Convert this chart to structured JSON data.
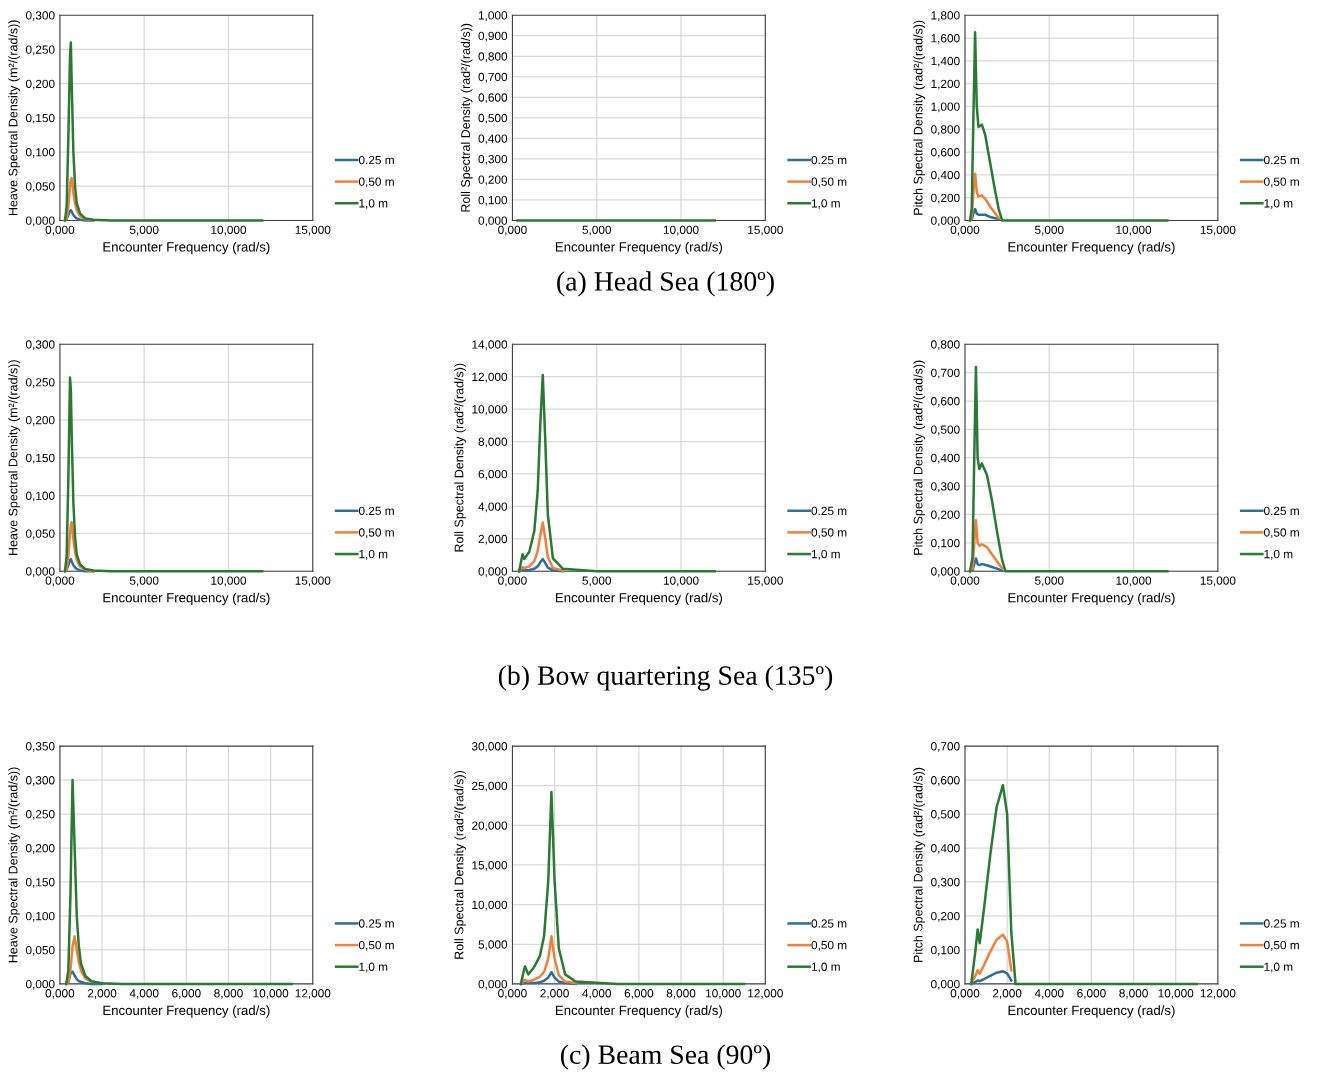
{
  "chart_data": [
    {
      "type": "line",
      "xlabel": "Encounter Frequency (rad/s)",
      "ylabel": "Heave Spectral Density (m²/(rad/s))",
      "xlim": [
        0,
        15
      ],
      "xticks": [
        {
          "value": 0,
          "label": "0,000"
        },
        {
          "value": 5,
          "label": "5,000"
        },
        {
          "value": 10,
          "label": "10,000"
        },
        {
          "value": 15,
          "label": "15,000"
        }
      ],
      "ylim": [
        0,
        0.3
      ],
      "yticks": [
        {
          "value": 0,
          "label": "0,000"
        },
        {
          "value": 0.05,
          "label": "0,050"
        },
        {
          "value": 0.1,
          "label": "0,100"
        },
        {
          "value": 0.15,
          "label": "0,150"
        },
        {
          "value": 0.2,
          "label": "0,200"
        },
        {
          "value": 0.25,
          "label": "0,250"
        },
        {
          "value": 0.3,
          "label": "0,300"
        }
      ],
      "grid": true,
      "legend": "right",
      "marker": "none",
      "line_style": "solid",
      "x": [
        0.3,
        0.4,
        0.5,
        0.6,
        0.65,
        0.7,
        0.8,
        0.9,
        1.0,
        1.2,
        1.5,
        2,
        3,
        5,
        12
      ],
      "series": [
        {
          "name": "0.25 m",
          "color": "#2e6e9e",
          "values": [
            0,
            0.002,
            0.008,
            0.014,
            0.015,
            0.013,
            0.008,
            0.005,
            0.003,
            0.001,
            0,
            0,
            null,
            null,
            null
          ]
        },
        {
          "name": "0,50 m",
          "color": "#f07f3c",
          "values": [
            0,
            0.003,
            0.02,
            0.05,
            0.06,
            0.062,
            0.04,
            0.025,
            0.015,
            0.006,
            0.002,
            0,
            null,
            null,
            null
          ]
        },
        {
          "name": "1,0 m",
          "color": "#2a7a33",
          "values": [
            0,
            0.02,
            0.12,
            0.24,
            0.26,
            0.2,
            0.1,
            0.05,
            0.025,
            0.01,
            0.003,
            0.001,
            0,
            0,
            0
          ]
        }
      ]
    },
    {
      "type": "line",
      "xlabel": "Encounter Frequency (rad/s)",
      "ylabel": "Roll Spectral Density (rad²/(rad/s))",
      "xlim": [
        0,
        15
      ],
      "xticks": [
        {
          "value": 0,
          "label": "0,000"
        },
        {
          "value": 5,
          "label": "5,000"
        },
        {
          "value": 10,
          "label": "10,000"
        },
        {
          "value": 15,
          "label": "15,000"
        }
      ],
      "ylim": [
        0,
        1
      ],
      "yticks": [
        {
          "value": 0,
          "label": "0,000"
        },
        {
          "value": 0.1,
          "label": "0,100"
        },
        {
          "value": 0.2,
          "label": "0,200"
        },
        {
          "value": 0.3,
          "label": "0,300"
        },
        {
          "value": 0.4,
          "label": "0,400"
        },
        {
          "value": 0.5,
          "label": "0,500"
        },
        {
          "value": 0.6,
          "label": "0,600"
        },
        {
          "value": 0.7,
          "label": "0,700"
        },
        {
          "value": 0.8,
          "label": "0,800"
        },
        {
          "value": 0.9,
          "label": "0,900"
        },
        {
          "value": 1,
          "label": "1,000"
        }
      ],
      "grid": true,
      "legend": "right",
      "marker": "none",
      "line_style": "solid",
      "annotations": [
        "(a) Head Sea (180º)"
      ],
      "x": [
        0.3,
        1,
        2,
        5,
        12
      ],
      "series": [
        {
          "name": "0.25 m",
          "color": "#2e6e9e",
          "values": [
            null,
            null,
            null,
            null,
            null
          ]
        },
        {
          "name": "0,50 m",
          "color": "#f07f3c",
          "values": [
            null,
            null,
            null,
            null,
            null
          ]
        },
        {
          "name": "1,0 m",
          "color": "#2a7a33",
          "values": [
            0,
            0,
            0,
            0,
            0
          ]
        }
      ]
    },
    {
      "type": "line",
      "xlabel": "Encounter Frequency (rad/s)",
      "ylabel": "Pitch Spectral Density (rad²/(rad/s))",
      "xlim": [
        0,
        15
      ],
      "xticks": [
        {
          "value": 0,
          "label": "0,000"
        },
        {
          "value": 5,
          "label": "5,000"
        },
        {
          "value": 10,
          "label": "10,000"
        },
        {
          "value": 15,
          "label": "15,000"
        }
      ],
      "ylim": [
        0,
        1.8
      ],
      "yticks": [
        {
          "value": 0,
          "label": "0,000"
        },
        {
          "value": 0.2,
          "label": "0,200"
        },
        {
          "value": 0.4,
          "label": "0,400"
        },
        {
          "value": 0.6,
          "label": "0,600"
        },
        {
          "value": 0.8,
          "label": "0,800"
        },
        {
          "value": 1,
          "label": "1,000"
        },
        {
          "value": 1.2,
          "label": "1,200"
        },
        {
          "value": 1.4,
          "label": "1,400"
        },
        {
          "value": 1.6,
          "label": "1,600"
        },
        {
          "value": 1.8,
          "label": "1,800"
        }
      ],
      "grid": true,
      "legend": "right",
      "marker": "none",
      "line_style": "solid",
      "x": [
        0.3,
        0.4,
        0.5,
        0.6,
        0.7,
        0.8,
        1.0,
        1.2,
        1.5,
        1.8,
        2.0,
        2.2,
        3,
        12
      ],
      "series": [
        {
          "name": "0.25 m",
          "color": "#2e6e9e",
          "values": [
            0,
            0.01,
            0.06,
            0.1,
            0.06,
            0.05,
            0.05,
            0.05,
            0.03,
            0.02,
            0.01,
            null,
            null,
            null
          ]
        },
        {
          "name": "0,50 m",
          "color": "#f07f3c",
          "values": [
            0,
            0.03,
            0.25,
            0.41,
            0.25,
            0.21,
            0.22,
            0.19,
            0.12,
            0.06,
            0.02,
            null,
            null,
            null
          ]
        },
        {
          "name": "1,0 m",
          "color": "#2a7a33",
          "values": [
            0,
            0.1,
            0.9,
            1.65,
            1.0,
            0.82,
            0.84,
            0.75,
            0.5,
            0.25,
            0.1,
            0,
            0,
            0
          ]
        }
      ]
    },
    {
      "type": "line",
      "xlabel": "Encounter Frequency (rad/s)",
      "ylabel": "Heave Spectral Density (m²/(rad/s))",
      "xlim": [
        0,
        15
      ],
      "xticks": [
        {
          "value": 0,
          "label": "0,000"
        },
        {
          "value": 5,
          "label": "5,000"
        },
        {
          "value": 10,
          "label": "10,000"
        },
        {
          "value": 15,
          "label": "15,000"
        }
      ],
      "ylim": [
        0,
        0.3
      ],
      "yticks": [
        {
          "value": 0,
          "label": "0,000"
        },
        {
          "value": 0.05,
          "label": "0,050"
        },
        {
          "value": 0.1,
          "label": "0,100"
        },
        {
          "value": 0.15,
          "label": "0,150"
        },
        {
          "value": 0.2,
          "label": "0,200"
        },
        {
          "value": 0.25,
          "label": "0,250"
        },
        {
          "value": 0.3,
          "label": "0,300"
        }
      ],
      "grid": true,
      "legend": "right",
      "marker": "none",
      "line_style": "solid",
      "x": [
        0.3,
        0.4,
        0.5,
        0.6,
        0.65,
        0.7,
        0.8,
        0.9,
        1.0,
        1.2,
        1.5,
        2,
        3,
        5,
        12
      ],
      "series": [
        {
          "name": "0.25 m",
          "color": "#2e6e9e",
          "values": [
            0,
            0.002,
            0.008,
            0.015,
            0.016,
            0.013,
            0.008,
            0.005,
            0.003,
            0.001,
            0,
            0,
            null,
            null,
            null
          ]
        },
        {
          "name": "0,50 m",
          "color": "#f07f3c",
          "values": [
            0,
            0.003,
            0.02,
            0.05,
            0.062,
            0.065,
            0.042,
            0.026,
            0.015,
            0.006,
            0.002,
            0,
            null,
            null,
            null
          ]
        },
        {
          "name": "1,0 m",
          "color": "#2a7a33",
          "values": [
            0,
            0.02,
            0.12,
            0.256,
            0.24,
            0.18,
            0.09,
            0.045,
            0.022,
            0.009,
            0.003,
            0.001,
            0,
            0,
            0
          ]
        }
      ]
    },
    {
      "type": "line",
      "xlabel": "Encounter Frequency (rad/s)",
      "ylabel": "Roll Spectral Density (rad²/(rad/s))",
      "xlim": [
        0,
        15
      ],
      "xticks": [
        {
          "value": 0,
          "label": "0,000"
        },
        {
          "value": 5,
          "label": "5,000"
        },
        {
          "value": 10,
          "label": "10,000"
        },
        {
          "value": 15,
          "label": "15,000"
        }
      ],
      "ylim": [
        0,
        14
      ],
      "yticks": [
        {
          "value": 0,
          "label": "0,000"
        },
        {
          "value": 2,
          "label": "2,000"
        },
        {
          "value": 4,
          "label": "4,000"
        },
        {
          "value": 6,
          "label": "6,000"
        },
        {
          "value": 8,
          "label": "8,000"
        },
        {
          "value": 10,
          "label": "10,000"
        },
        {
          "value": 12,
          "label": "12,000"
        },
        {
          "value": 14,
          "label": "14,000"
        }
      ],
      "grid": true,
      "legend": "right",
      "marker": "none",
      "line_style": "solid",
      "annotations": [
        "(b) Bow quartering Sea (135º)"
      ],
      "x": [
        0.4,
        0.55,
        0.6,
        0.7,
        1.0,
        1.3,
        1.5,
        1.65,
        1.8,
        1.95,
        2.1,
        2.4,
        3,
        5,
        12
      ],
      "series": [
        {
          "name": "0.25 m",
          "color": "#2e6e9e",
          "values": [
            0,
            0.05,
            0.07,
            0.05,
            0.08,
            0.15,
            0.3,
            0.55,
            0.75,
            0.5,
            0.22,
            0.05,
            0.01,
            null,
            null
          ]
        },
        {
          "name": "0,50 m",
          "color": "#f07f3c",
          "values": [
            0,
            0.2,
            0.26,
            0.19,
            0.3,
            0.62,
            1.25,
            2.2,
            3.0,
            2.0,
            0.87,
            0.2,
            0.04,
            null,
            null
          ]
        },
        {
          "name": "1,0 m",
          "color": "#2a7a33",
          "values": [
            0,
            0.8,
            1.05,
            0.75,
            1.2,
            2.5,
            5.0,
            9.0,
            12.1,
            8.0,
            3.5,
            0.8,
            0.15,
            0,
            0
          ]
        }
      ]
    },
    {
      "type": "line",
      "xlabel": "Encounter Frequency (rad/s)",
      "ylabel": "Pitch Spectral Density (rad²/(rad/s))",
      "xlim": [
        0,
        15
      ],
      "xticks": [
        {
          "value": 0,
          "label": "0,000"
        },
        {
          "value": 5,
          "label": "5,000"
        },
        {
          "value": 10,
          "label": "10,000"
        },
        {
          "value": 15,
          "label": "15,000"
        }
      ],
      "ylim": [
        0,
        0.8
      ],
      "yticks": [
        {
          "value": 0,
          "label": "0,000"
        },
        {
          "value": 0.1,
          "label": "0,100"
        },
        {
          "value": 0.2,
          "label": "0,200"
        },
        {
          "value": 0.3,
          "label": "0,300"
        },
        {
          "value": 0.4,
          "label": "0,400"
        },
        {
          "value": 0.5,
          "label": "0,500"
        },
        {
          "value": 0.6,
          "label": "0,600"
        },
        {
          "value": 0.7,
          "label": "0,700"
        },
        {
          "value": 0.8,
          "label": "0,800"
        }
      ],
      "grid": true,
      "legend": "right",
      "marker": "none",
      "line_style": "solid",
      "x": [
        0.3,
        0.45,
        0.55,
        0.65,
        0.75,
        0.85,
        1.0,
        1.3,
        1.6,
        1.9,
        2.2,
        2.4,
        3,
        12
      ],
      "series": [
        {
          "name": "0.25 m",
          "color": "#2e6e9e",
          "values": [
            0,
            0.003,
            0.025,
            0.045,
            0.025,
            0.022,
            0.025,
            0.021,
            0.015,
            0.009,
            0.002,
            null,
            null,
            null
          ]
        },
        {
          "name": "0,50 m",
          "color": "#f07f3c",
          "values": [
            0,
            0.01,
            0.1,
            0.18,
            0.1,
            0.09,
            0.095,
            0.085,
            0.06,
            0.035,
            0.01,
            null,
            null,
            null
          ]
        },
        {
          "name": "1,0 m",
          "color": "#2a7a33",
          "values": [
            0,
            0.05,
            0.4,
            0.72,
            0.4,
            0.36,
            0.38,
            0.34,
            0.25,
            0.14,
            0.04,
            0,
            0,
            0
          ]
        }
      ]
    },
    {
      "type": "line",
      "xlabel": "Encounter Frequency (rad/s)",
      "ylabel": "Heave Spectral Density (m²/(rad/s))",
      "xlim": [
        0,
        12
      ],
      "xticks": [
        {
          "value": 0,
          "label": "0,000"
        },
        {
          "value": 2,
          "label": "2,000"
        },
        {
          "value": 4,
          "label": "4,000"
        },
        {
          "value": 6,
          "label": "6,000"
        },
        {
          "value": 8,
          "label": "8,000"
        },
        {
          "value": 10,
          "label": "10,000"
        },
        {
          "value": 12,
          "label": "12,000"
        }
      ],
      "ylim": [
        0,
        0.35
      ],
      "yticks": [
        {
          "value": 0,
          "label": "0,000"
        },
        {
          "value": 0.05,
          "label": "0,050"
        },
        {
          "value": 0.1,
          "label": "0,100"
        },
        {
          "value": 0.15,
          "label": "0,150"
        },
        {
          "value": 0.2,
          "label": "0,200"
        },
        {
          "value": 0.25,
          "label": "0,250"
        },
        {
          "value": 0.3,
          "label": "0,300"
        },
        {
          "value": 0.35,
          "label": "0,350"
        }
      ],
      "grid": true,
      "legend": "right",
      "marker": "none",
      "line_style": "solid",
      "x": [
        0.3,
        0.4,
        0.5,
        0.6,
        0.7,
        0.8,
        0.9,
        1.0,
        1.2,
        1.5,
        2,
        3,
        5,
        11
      ],
      "series": [
        {
          "name": "0.25 m",
          "color": "#2e6e9e",
          "values": [
            0,
            0.002,
            0.015,
            0.018,
            0.012,
            0.007,
            0.004,
            0.003,
            0.001,
            0,
            0,
            null,
            null,
            null
          ]
        },
        {
          "name": "0,50 m",
          "color": "#f07f3c",
          "values": [
            0,
            0.003,
            0.02,
            0.055,
            0.07,
            0.05,
            0.032,
            0.02,
            0.008,
            0.003,
            null,
            null,
            null,
            null
          ]
        },
        {
          "name": "1,0 m",
          "color": "#2a7a33",
          "values": [
            0,
            0.02,
            0.13,
            0.3,
            0.2,
            0.1,
            0.055,
            0.03,
            0.012,
            0.004,
            0.001,
            0,
            0,
            0
          ]
        }
      ]
    },
    {
      "type": "line",
      "xlabel": "Encounter Frequency (rad/s)",
      "ylabel": "Roll Spectral Density (rad²/(rad/s))",
      "xlim": [
        0,
        12
      ],
      "xticks": [
        {
          "value": 0,
          "label": "0,000"
        },
        {
          "value": 2,
          "label": "2,000"
        },
        {
          "value": 4,
          "label": "4,000"
        },
        {
          "value": 6,
          "label": "6,000"
        },
        {
          "value": 8,
          "label": "8,000"
        },
        {
          "value": 10,
          "label": "10,000"
        },
        {
          "value": 12,
          "label": "12,000"
        }
      ],
      "ylim": [
        0,
        30
      ],
      "yticks": [
        {
          "value": 0,
          "label": "0,000"
        },
        {
          "value": 5,
          "label": "5,000"
        },
        {
          "value": 10,
          "label": "10,000"
        },
        {
          "value": 15,
          "label": "15,000"
        },
        {
          "value": 20,
          "label": "20,000"
        },
        {
          "value": 25,
          "label": "25,000"
        },
        {
          "value": 30,
          "label": "30,000"
        }
      ],
      "grid": true,
      "legend": "right",
      "marker": "none",
      "line_style": "solid",
      "annotations": [
        "(c) Beam Sea (90º)"
      ],
      "x": [
        0.4,
        0.55,
        0.6,
        0.75,
        1.0,
        1.3,
        1.5,
        1.7,
        1.85,
        2.0,
        2.2,
        2.5,
        3,
        5,
        11
      ],
      "series": [
        {
          "name": "0.25 m",
          "color": "#2e6e9e",
          "values": [
            0,
            0.1,
            0.1,
            0.1,
            0.1,
            0.2,
            0.4,
            0.8,
            1.5,
            0.8,
            0.3,
            0.1,
            0,
            null,
            null
          ]
        },
        {
          "name": "0,50 m",
          "color": "#f07f3c",
          "values": [
            0,
            0.5,
            0.5,
            0.3,
            0.5,
            0.9,
            1.5,
            3.2,
            6.0,
            3.2,
            1.1,
            0.3,
            0.1,
            null,
            null
          ]
        },
        {
          "name": "1,0 m",
          "color": "#2a7a33",
          "values": [
            0,
            1.8,
            2.2,
            1.2,
            2.0,
            3.5,
            6.0,
            13.0,
            24.2,
            13.0,
            4.5,
            1.2,
            0.3,
            0,
            0
          ]
        }
      ]
    },
    {
      "type": "line",
      "xlabel": "Encounter Frequency (rad/s)",
      "ylabel": "Pitch Spectral Density (rad²/(rad/s))",
      "xlim": [
        0,
        12
      ],
      "xticks": [
        {
          "value": 0,
          "label": "0,000"
        },
        {
          "value": 2,
          "label": "2,000"
        },
        {
          "value": 4,
          "label": "4,000"
        },
        {
          "value": 6,
          "label": "6,000"
        },
        {
          "value": 8,
          "label": "8,000"
        },
        {
          "value": 10,
          "label": "10,000"
        },
        {
          "value": 12,
          "label": "12,000"
        }
      ],
      "ylim": [
        0,
        0.7
      ],
      "yticks": [
        {
          "value": 0,
          "label": "0,000"
        },
        {
          "value": 0.1,
          "label": "0,100"
        },
        {
          "value": 0.2,
          "label": "0,200"
        },
        {
          "value": 0.3,
          "label": "0,300"
        },
        {
          "value": 0.4,
          "label": "0,400"
        },
        {
          "value": 0.5,
          "label": "0,500"
        },
        {
          "value": 0.6,
          "label": "0,600"
        },
        {
          "value": 0.7,
          "label": "0,700"
        }
      ],
      "grid": true,
      "legend": "right",
      "marker": "none",
      "line_style": "solid",
      "x": [
        0.3,
        0.5,
        0.6,
        0.7,
        0.9,
        1.2,
        1.5,
        1.8,
        2.0,
        2.2,
        2.4,
        3,
        11
      ],
      "series": [
        {
          "name": "0.25 m",
          "color": "#2e6e9e",
          "values": [
            0,
            0.006,
            0.01,
            0.008,
            0.014,
            0.024,
            0.033,
            0.037,
            0.031,
            0.01,
            null,
            null,
            null
          ]
        },
        {
          "name": "0,50 m",
          "color": "#f07f3c",
          "values": [
            0,
            0.025,
            0.04,
            0.03,
            0.055,
            0.095,
            0.13,
            0.145,
            0.125,
            0.04,
            null,
            null,
            null
          ]
        },
        {
          "name": "1,0 m",
          "color": "#2a7a33",
          "values": [
            0,
            0.1,
            0.16,
            0.12,
            0.22,
            0.38,
            0.52,
            0.585,
            0.5,
            0.15,
            0,
            0,
            0
          ]
        }
      ]
    }
  ]
}
